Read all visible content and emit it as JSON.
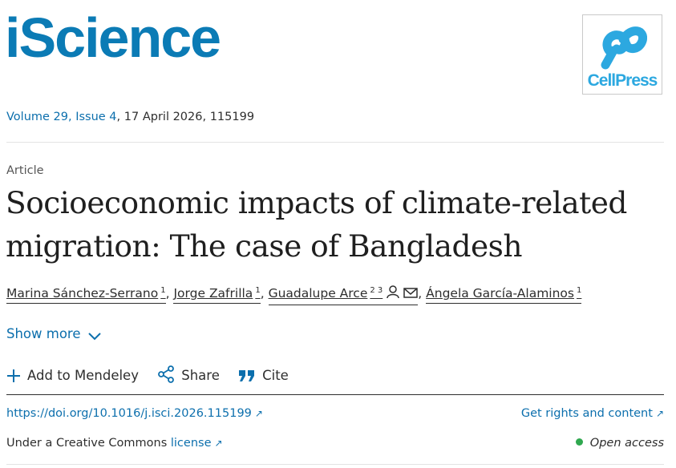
{
  "header": {
    "journal": "iScience",
    "publisher": "CellPress"
  },
  "issue": {
    "volume_issue": "Volume 29, Issue 4",
    "date_article": ", 17 April 2026, 115199"
  },
  "article": {
    "type": "Article",
    "title": "Socioeconomic impacts of climate-related migration: The case of Bangladesh"
  },
  "authors": [
    {
      "name": "Marina Sánchez-Serrano",
      "affil": "1"
    },
    {
      "name": "Jorge Zafrilla",
      "affil": "1"
    },
    {
      "name": "Guadalupe Arce",
      "affil": "2 3"
    },
    {
      "name": "Ángela García-Alaminos",
      "affil": "1"
    }
  ],
  "author_separator": ",",
  "show_more": "Show more",
  "actions": {
    "mendeley": "Add to Mendeley",
    "share": "Share",
    "cite": "Cite"
  },
  "doi": {
    "url": "https://doi.org/10.1016/j.isci.2026.115199",
    "rights": "Get rights and content"
  },
  "license": {
    "prefix": "Under a Creative Commons ",
    "link": "license",
    "open_access": "Open access"
  },
  "colors": {
    "journal_blue": "#0b7bb5",
    "link_blue": "#0c6fad",
    "cellpress_blue": "#2ca8e0",
    "open_access_green": "#2fa84f"
  },
  "icons": [
    "person-icon",
    "mail-icon",
    "chevron-down-icon",
    "plus-icon",
    "share-icon",
    "quote-icon",
    "external-link-icon",
    "status-dot"
  ]
}
